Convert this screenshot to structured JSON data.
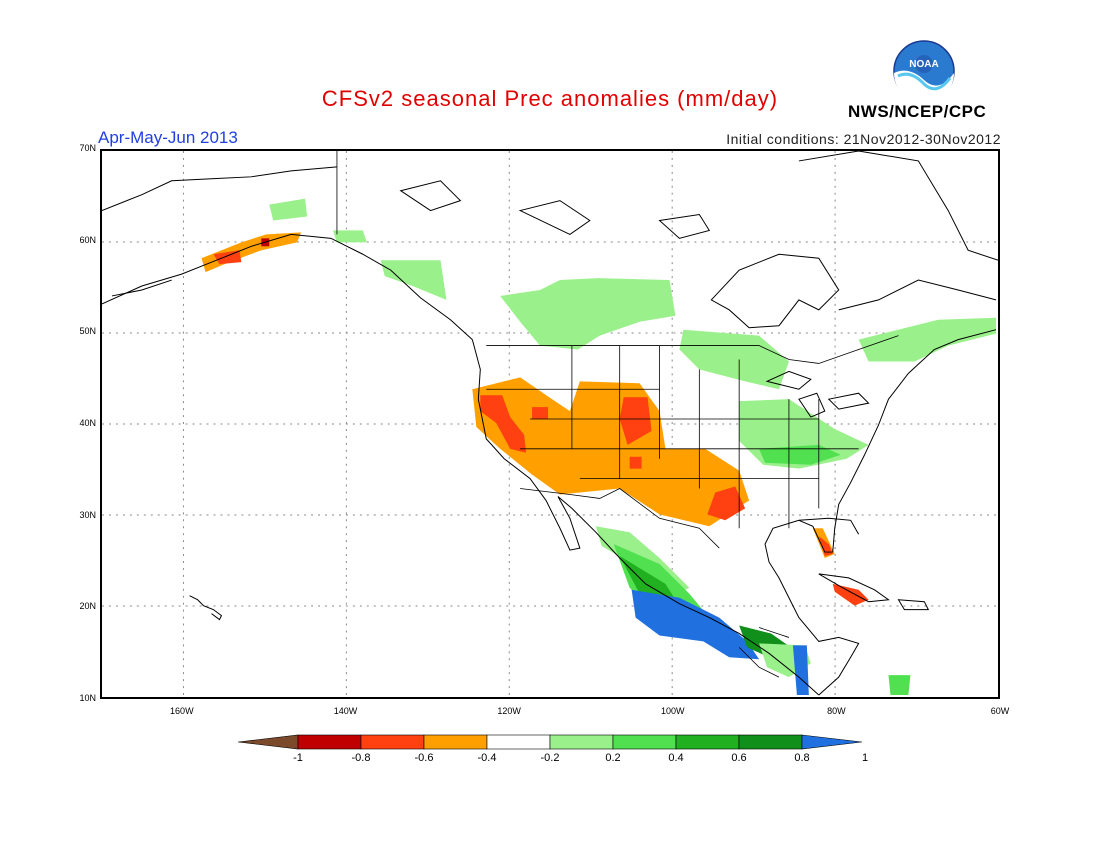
{
  "header": {
    "title": "CFSv2 seasonal Prec anomalies (mm/day)",
    "period": "Apr-May-Jun 2013",
    "initial_conditions": "Initial conditions: 21Nov2012-30Nov2012",
    "agency": "NWS/NCEP/CPC",
    "logo_text": "NOAA"
  },
  "map": {
    "projection": "lat-lon",
    "lon_range": [
      -170,
      -60
    ],
    "lat_range": [
      10,
      70
    ],
    "grid": true,
    "lat_labels": [
      "70N",
      "60N",
      "50N",
      "40N",
      "30N",
      "20N",
      "10N"
    ],
    "lon_labels": [
      "160W",
      "140W",
      "120W",
      "100W",
      "80W",
      "60W"
    ]
  },
  "colorbar": {
    "labels": [
      "-1",
      "-0.8",
      "-0.6",
      "-0.4",
      "-0.2",
      "0.2",
      "0.4",
      "0.6",
      "0.8",
      "1"
    ],
    "colors": [
      "#7a4a2a",
      "#c00000",
      "#ff4010",
      "#ffa000",
      "#ffffff",
      "#9af08a",
      "#50e050",
      "#20b020",
      "#10901a",
      "#2070e0"
    ]
  }
}
